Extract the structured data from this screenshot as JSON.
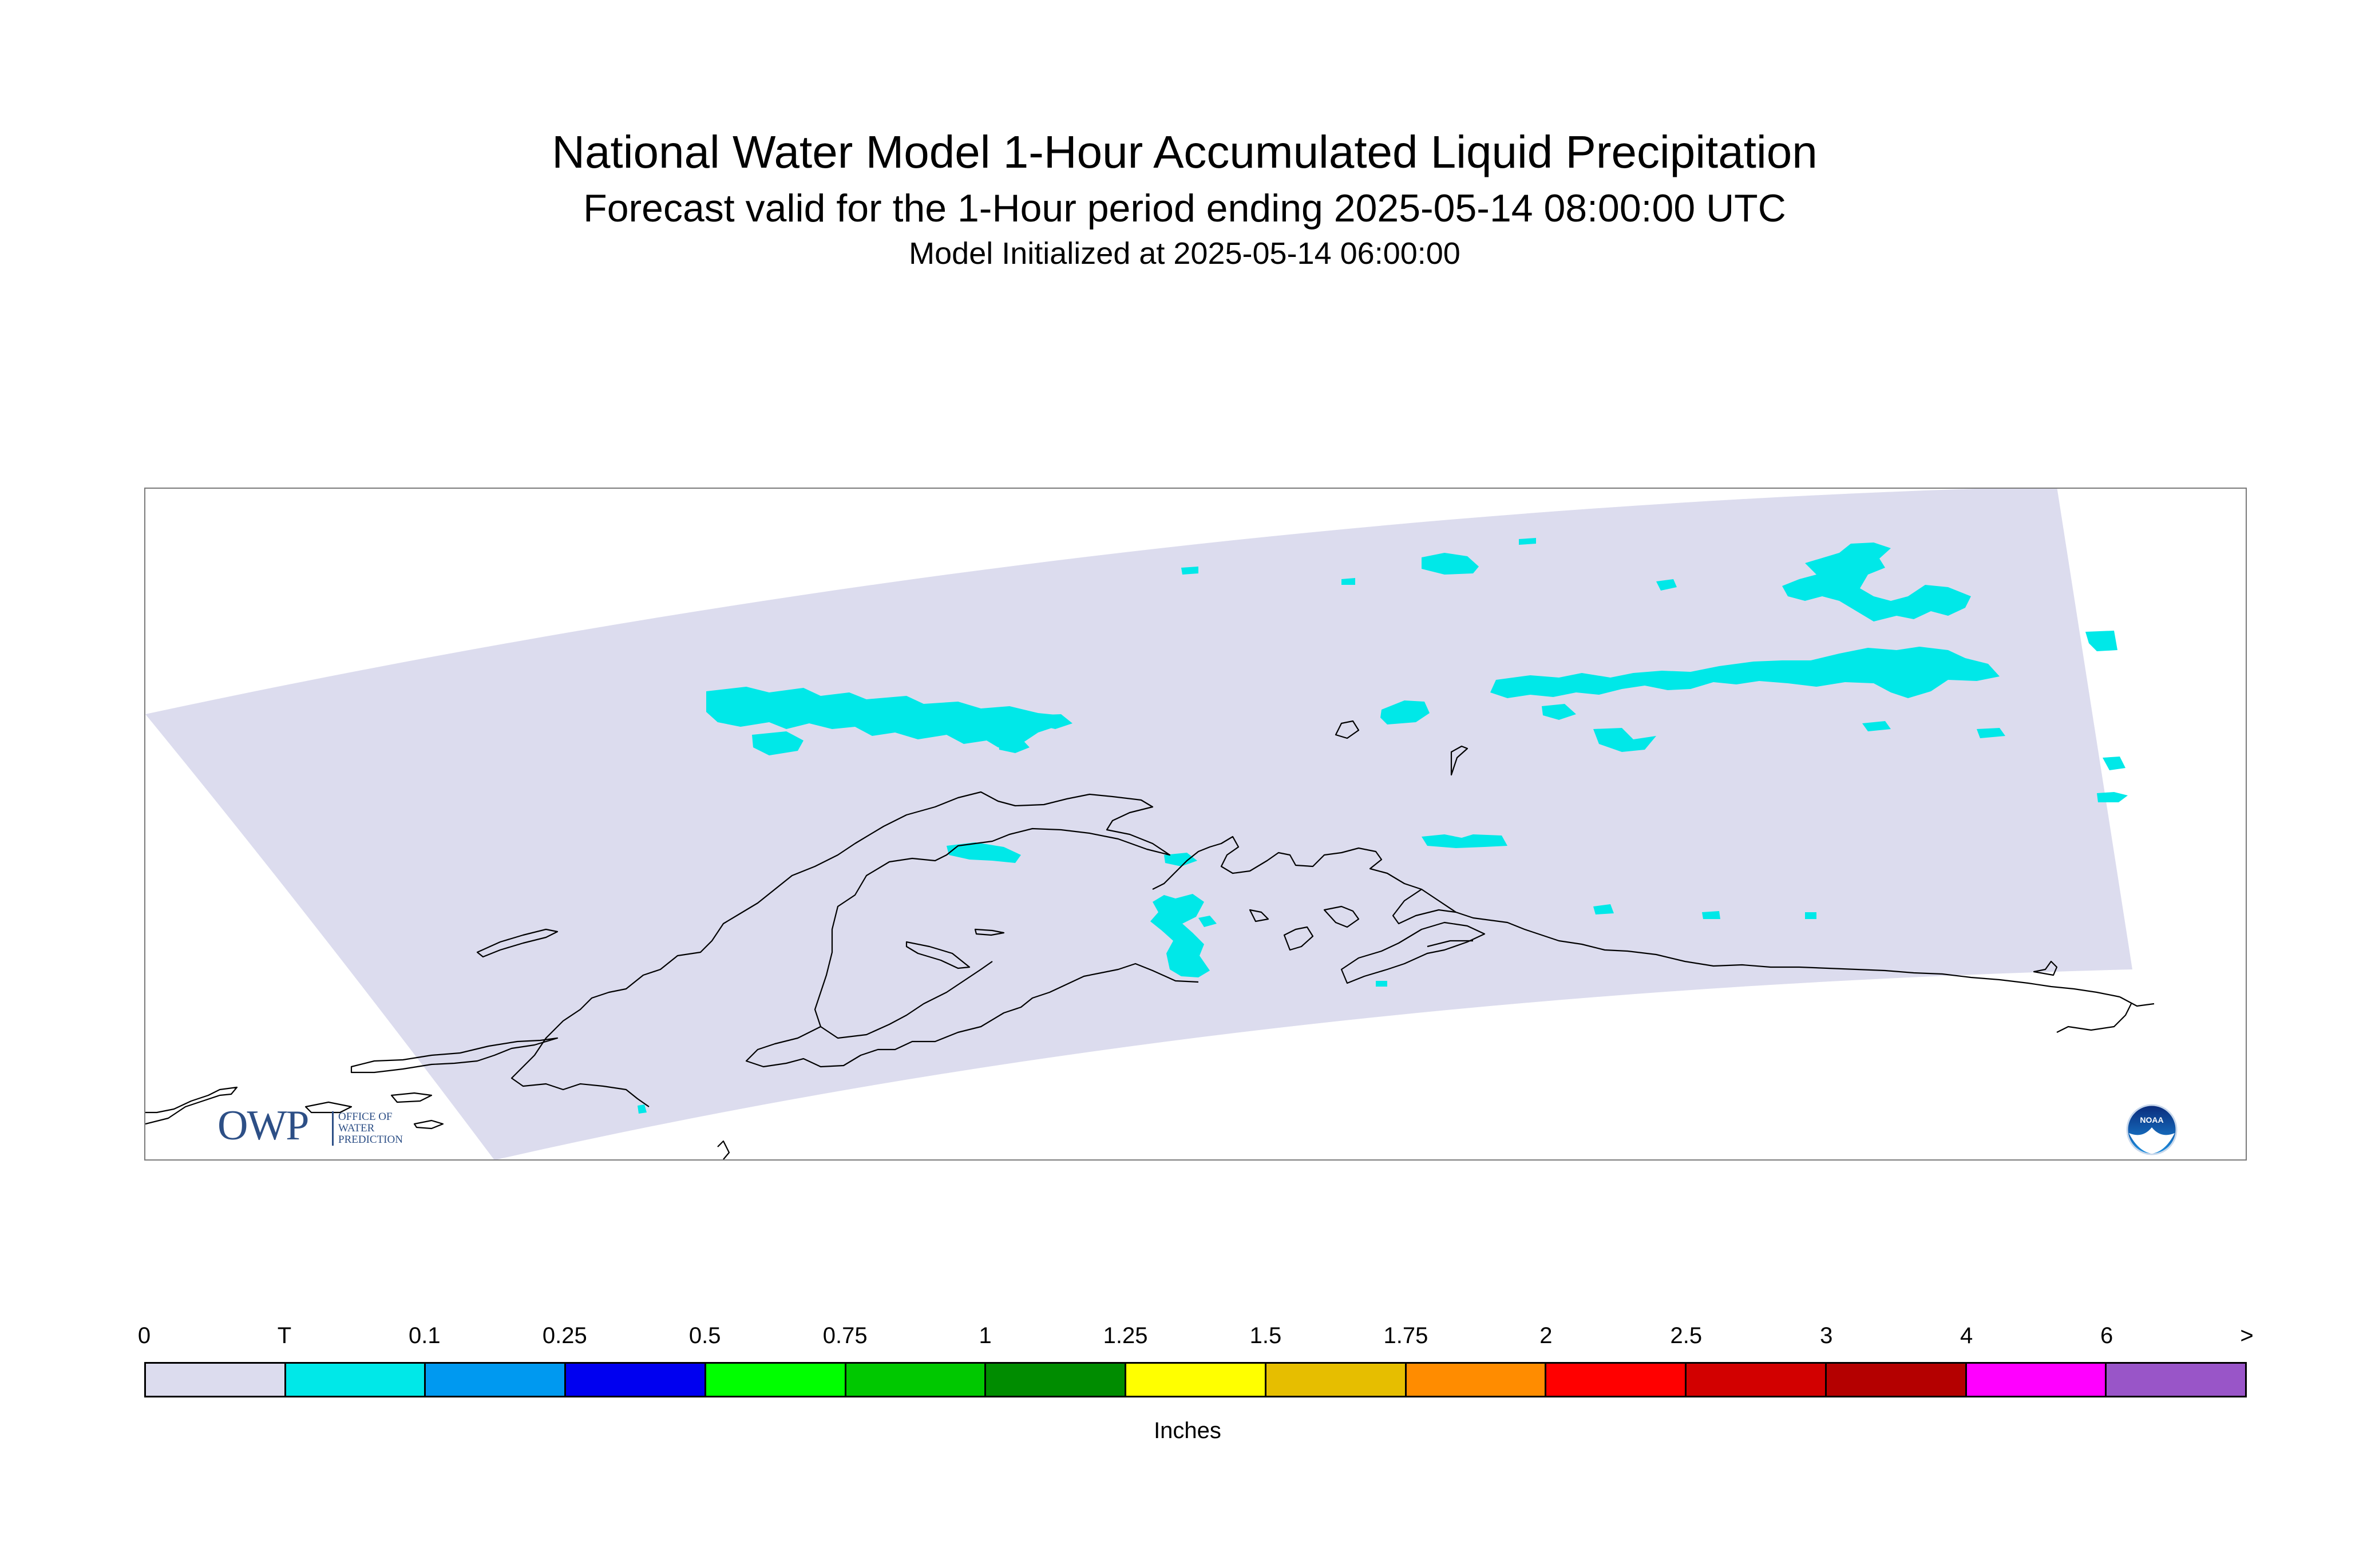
{
  "header": {
    "title": "National Water Model 1-Hour Accumulated Liquid Precipitation",
    "subtitle": "Forecast valid for the 1-Hour period ending 2025-05-14 08:00:00 UTC",
    "initialized": "Model Initialized at 2025-05-14 06:00:00"
  },
  "map": {
    "domain_color": "#dcdcee",
    "precip_color": "#00e8e8",
    "coastline_color": "#000000"
  },
  "logos": {
    "owp_letters": "OWP",
    "owp_line1": "Office of",
    "owp_line2": "Water",
    "owp_line3": "Prediction",
    "noaa_text": "NOAA"
  },
  "legend": {
    "unit": "Inches",
    "tick_labels": [
      "0",
      "T",
      "0.1",
      "0.25",
      "0.5",
      "0.75",
      "1",
      "1.25",
      "1.5",
      "1.75",
      "2",
      "2.5",
      "3",
      "4",
      "6",
      ">"
    ],
    "colors": [
      "#dcdcee",
      "#00e8e8",
      "#0099f0",
      "#0000f0",
      "#00ff00",
      "#00c800",
      "#008c00",
      "#ffff00",
      "#e6be00",
      "#ff8c00",
      "#ff0000",
      "#d20000",
      "#b40000",
      "#ff00ff",
      "#9955c8"
    ]
  }
}
